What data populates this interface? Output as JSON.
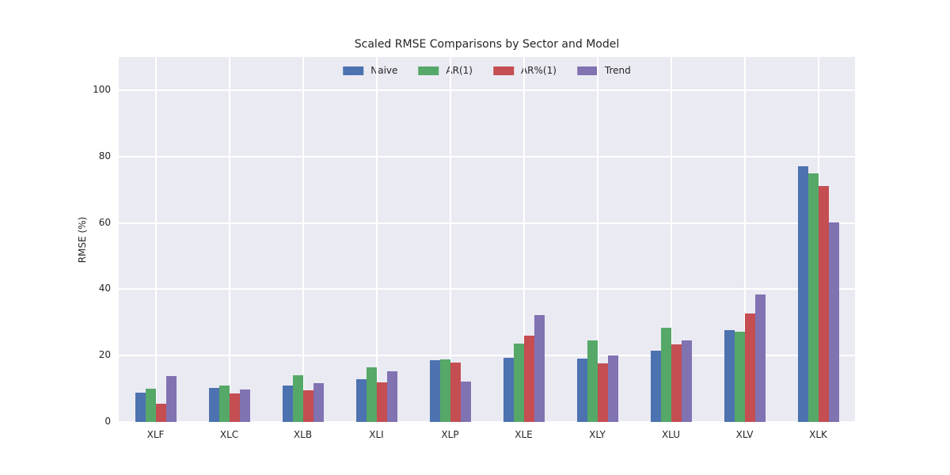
{
  "chart_data": {
    "type": "bar",
    "title": "Scaled RMSE Comparisons by Sector and Model",
    "xlabel": "",
    "ylabel": "RMSE (%)",
    "categories": [
      "XLF",
      "XLC",
      "XLB",
      "XLI",
      "XLP",
      "XLE",
      "XLY",
      "XLU",
      "XLV",
      "XLK"
    ],
    "series": [
      {
        "name": "Naive",
        "color": "#4c72b0",
        "values": [
          8.8,
          10.2,
          11.0,
          13.0,
          18.6,
          19.4,
          19.2,
          21.4,
          27.7,
          77.0
        ]
      },
      {
        "name": "AR(1)",
        "color": "#55a868",
        "values": [
          10.0,
          10.9,
          14.2,
          16.5,
          18.9,
          23.7,
          24.6,
          28.5,
          27.2,
          74.9
        ]
      },
      {
        "name": "AR%(1)",
        "color": "#c44e52",
        "values": [
          5.6,
          8.7,
          9.6,
          11.9,
          17.9,
          25.9,
          17.7,
          23.5,
          32.8,
          71.2
        ]
      },
      {
        "name": "Trend",
        "color": "#8172b2",
        "values": [
          13.8,
          9.9,
          11.6,
          15.2,
          12.1,
          32.3,
          20.1,
          24.7,
          38.4,
          60.1
        ]
      }
    ],
    "ylim": [
      0,
      110
    ],
    "yticks": [
      0,
      20,
      40,
      60,
      80,
      100
    ],
    "grid": true,
    "legend_position": "upper center",
    "plot_background": "#eaeaf2",
    "gridline_color": "#ffffff",
    "text_color": "#262626"
  }
}
